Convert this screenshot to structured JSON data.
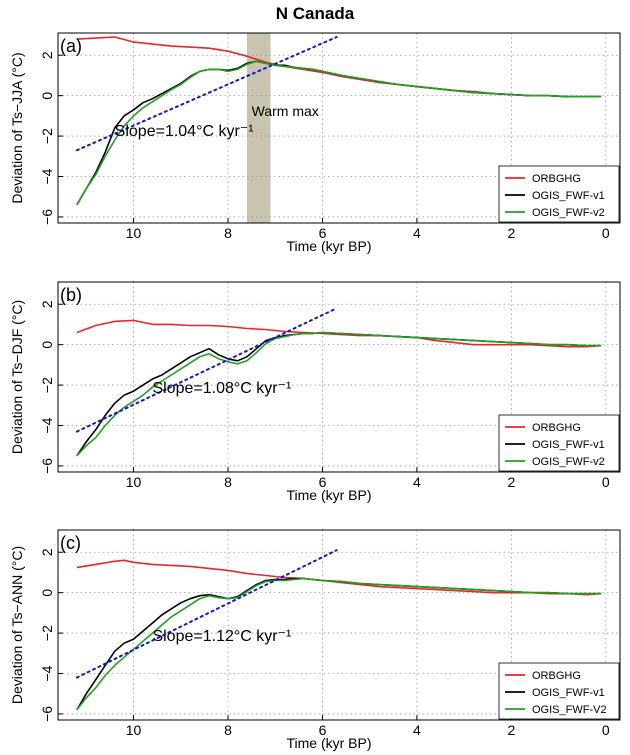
{
  "title": "N Canada",
  "colors": {
    "ORBGHG": "#e8262b",
    "OGIS_FWF-v1": "#000000",
    "OGIS_FWF-v2": "#22a022",
    "slope": "#1515d8",
    "shade": "#9c9470"
  },
  "chart_data": [
    {
      "type": "line",
      "panel_label": "(a)",
      "xlabel": "Time (kyr BP)",
      "ylabel": "Deviation of Ts−JJA (°C)",
      "xlim": [
        11.6,
        -0.3
      ],
      "ylim": [
        -6.3,
        3.1
      ],
      "xticks": [
        10,
        8,
        6,
        4,
        2,
        0
      ],
      "xtick_labels": [
        "10",
        "8",
        "6",
        "4",
        "2",
        "0"
      ],
      "yticks": [
        -6,
        -4,
        -2,
        0,
        2
      ],
      "ytick_labels": [
        "−6",
        "−4",
        "−2",
        "0",
        "2"
      ],
      "grid": true,
      "legend_position": "bottom-right",
      "annotation": "Slope=1.04°C kyr⁻¹",
      "annotation_pos": [
        10.4,
        -2.0
      ],
      "shade_label": "Warm max",
      "shade_label_pos": [
        7.5,
        -1.0
      ],
      "shaded_region": [
        7.6,
        7.1
      ],
      "slope_line": {
        "x": [
          11.2,
          5.7
        ],
        "y": [
          -2.7,
          2.9
        ]
      },
      "series": [
        {
          "name": "ORBGHG",
          "x": [
            11.2,
            10.8,
            10.4,
            10.0,
            9.6,
            9.2,
            8.8,
            8.4,
            8.0,
            7.6,
            7.2,
            6.8,
            6.4,
            6.0,
            5.6,
            5.2,
            4.8,
            4.4,
            4.0,
            3.6,
            3.2,
            2.8,
            2.4,
            2.0,
            1.6,
            1.2,
            0.8,
            0.4,
            0.1
          ],
          "y": [
            2.8,
            2.85,
            2.9,
            2.65,
            2.55,
            2.45,
            2.4,
            2.35,
            2.2,
            1.95,
            1.65,
            1.45,
            1.3,
            1.15,
            0.95,
            0.8,
            0.65,
            0.55,
            0.45,
            0.35,
            0.25,
            0.2,
            0.1,
            0.05,
            0.0,
            0.0,
            -0.05,
            -0.05,
            -0.05
          ]
        },
        {
          "name": "OGIS_FWF-v1",
          "x": [
            11.2,
            11.0,
            10.8,
            10.6,
            10.4,
            10.2,
            10.0,
            9.8,
            9.6,
            9.4,
            9.2,
            9.0,
            8.8,
            8.6,
            8.4,
            8.2,
            8.0,
            7.8,
            7.6,
            7.4,
            7.2,
            7.0,
            6.8,
            6.6,
            6.4,
            6.2,
            6.0,
            5.8,
            5.6,
            5.2,
            4.8,
            4.4,
            4.0,
            3.6,
            3.2,
            2.8,
            2.4,
            2.0,
            1.6,
            1.2,
            0.8,
            0.4,
            0.1
          ],
          "y": [
            -5.4,
            -4.6,
            -3.8,
            -2.8,
            -1.6,
            -1.0,
            -0.7,
            -0.35,
            -0.15,
            0.1,
            0.35,
            0.6,
            0.95,
            1.2,
            1.3,
            1.3,
            1.25,
            1.35,
            1.6,
            1.7,
            1.6,
            1.5,
            1.5,
            1.4,
            1.35,
            1.3,
            1.2,
            1.1,
            1.0,
            0.85,
            0.7,
            0.55,
            0.45,
            0.35,
            0.25,
            0.15,
            0.1,
            0.05,
            0.0,
            0.0,
            -0.05,
            -0.05,
            -0.05
          ]
        },
        {
          "name": "OGIS_FWF-v2",
          "x": [
            11.2,
            11.0,
            10.8,
            10.6,
            10.4,
            10.2,
            10.0,
            9.8,
            9.6,
            9.4,
            9.2,
            9.0,
            8.8,
            8.6,
            8.4,
            8.2,
            8.0,
            7.8,
            7.6,
            7.4,
            7.2,
            7.0,
            6.8,
            6.6,
            6.4,
            6.2,
            6.0,
            5.8,
            5.6,
            5.2,
            4.8,
            4.4,
            4.0,
            3.6,
            3.2,
            2.8,
            2.4,
            2.0,
            1.6,
            1.2,
            0.8,
            0.4,
            0.1
          ],
          "y": [
            -5.4,
            -4.6,
            -3.9,
            -3.0,
            -2.2,
            -1.5,
            -1.0,
            -0.6,
            -0.3,
            0.0,
            0.3,
            0.55,
            0.9,
            1.2,
            1.3,
            1.3,
            1.2,
            1.3,
            1.55,
            1.7,
            1.6,
            1.5,
            1.45,
            1.4,
            1.35,
            1.3,
            1.2,
            1.1,
            1.0,
            0.85,
            0.7,
            0.55,
            0.45,
            0.35,
            0.25,
            0.15,
            0.1,
            0.05,
            0.0,
            0.0,
            -0.05,
            -0.05,
            -0.05
          ]
        }
      ]
    },
    {
      "type": "line",
      "panel_label": "(b)",
      "xlabel": "Time (kyr BP)",
      "ylabel": "Deviation of Ts−DJF (°C)",
      "xlim": [
        11.6,
        -0.3
      ],
      "ylim": [
        -6.3,
        3.1
      ],
      "xticks": [
        10,
        8,
        6,
        4,
        2,
        0
      ],
      "xtick_labels": [
        "10",
        "8",
        "6",
        "4",
        "2",
        "0"
      ],
      "yticks": [
        -6,
        -4,
        -2,
        0,
        2
      ],
      "ytick_labels": [
        "−6",
        "−4",
        "−2",
        "0",
        "2"
      ],
      "grid": true,
      "legend_position": "bottom-right",
      "annotation": "Slope=1.08°C kyr⁻¹",
      "annotation_pos": [
        9.6,
        -2.4
      ],
      "slope_line": {
        "x": [
          11.2,
          5.7
        ],
        "y": [
          -4.3,
          1.8
        ]
      },
      "series": [
        {
          "name": "ORBGHG",
          "x": [
            11.2,
            10.8,
            10.4,
            10.0,
            9.6,
            9.2,
            8.8,
            8.4,
            8.0,
            7.6,
            7.2,
            6.8,
            6.4,
            6.0,
            5.6,
            5.2,
            4.8,
            4.4,
            4.0,
            3.6,
            3.2,
            2.8,
            2.4,
            2.0,
            1.6,
            1.2,
            0.8,
            0.4,
            0.1
          ],
          "y": [
            0.6,
            0.95,
            1.15,
            1.2,
            1.0,
            1.0,
            0.95,
            0.95,
            0.9,
            0.8,
            0.75,
            0.65,
            0.6,
            0.55,
            0.5,
            0.45,
            0.45,
            0.4,
            0.35,
            0.2,
            0.1,
            0.0,
            0.0,
            0.0,
            0.0,
            -0.05,
            -0.1,
            -0.1,
            -0.05
          ]
        },
        {
          "name": "OGIS_FWF-v1",
          "x": [
            11.2,
            11.0,
            10.8,
            10.6,
            10.4,
            10.2,
            10.0,
            9.8,
            9.6,
            9.4,
            9.2,
            9.0,
            8.8,
            8.6,
            8.4,
            8.2,
            8.0,
            7.8,
            7.6,
            7.4,
            7.2,
            7.0,
            6.8,
            6.6,
            6.4,
            6.2,
            6.0,
            5.6,
            5.2,
            4.8,
            4.4,
            4.0,
            3.6,
            3.2,
            2.8,
            2.4,
            2.0,
            1.6,
            1.2,
            0.8,
            0.4,
            0.1
          ],
          "y": [
            -5.5,
            -4.8,
            -4.2,
            -3.5,
            -2.9,
            -2.5,
            -2.3,
            -2.0,
            -1.7,
            -1.5,
            -1.2,
            -0.9,
            -0.6,
            -0.4,
            -0.2,
            -0.5,
            -0.7,
            -0.8,
            -0.6,
            -0.2,
            0.2,
            0.35,
            0.45,
            0.5,
            0.55,
            0.55,
            0.6,
            0.55,
            0.5,
            0.45,
            0.4,
            0.35,
            0.3,
            0.25,
            0.2,
            0.15,
            0.1,
            0.05,
            0.0,
            0.0,
            -0.05,
            -0.05
          ]
        },
        {
          "name": "OGIS_FWF-v2",
          "x": [
            11.2,
            11.0,
            10.8,
            10.6,
            10.4,
            10.2,
            10.0,
            9.8,
            9.6,
            9.4,
            9.2,
            9.0,
            8.8,
            8.6,
            8.4,
            8.2,
            8.0,
            7.8,
            7.6,
            7.4,
            7.2,
            7.0,
            6.8,
            6.6,
            6.4,
            6.2,
            6.0,
            5.6,
            5.2,
            4.8,
            4.4,
            4.0,
            3.6,
            3.2,
            2.8,
            2.4,
            2.0,
            1.6,
            1.2,
            0.8,
            0.4,
            0.1
          ],
          "y": [
            -5.5,
            -5.0,
            -4.6,
            -4.0,
            -3.5,
            -3.1,
            -2.8,
            -2.5,
            -2.1,
            -1.8,
            -1.5,
            -1.2,
            -0.9,
            -0.6,
            -0.45,
            -0.7,
            -0.85,
            -0.95,
            -0.8,
            -0.4,
            0.05,
            0.3,
            0.4,
            0.5,
            0.55,
            0.55,
            0.6,
            0.55,
            0.5,
            0.45,
            0.4,
            0.35,
            0.3,
            0.25,
            0.2,
            0.15,
            0.1,
            0.05,
            0.0,
            0.0,
            -0.05,
            -0.05
          ]
        }
      ]
    },
    {
      "type": "line",
      "panel_label": "(c)",
      "xlabel": "Time (kyr BP)",
      "ylabel": "Deviation of Ts−ANN (°C)",
      "xlim": [
        11.6,
        -0.3
      ],
      "ylim": [
        -6.3,
        3.1
      ],
      "xticks": [
        10,
        8,
        6,
        4,
        2,
        0
      ],
      "xtick_labels": [
        "10",
        "8",
        "6",
        "4",
        "2",
        "0"
      ],
      "yticks": [
        -6,
        -4,
        -2,
        0,
        2
      ],
      "ytick_labels": [
        "−6",
        "−4",
        "−2",
        "0",
        "2"
      ],
      "grid": true,
      "legend_position": "bottom-right",
      "annotation": "Slope=1.12°C kyr⁻¹",
      "annotation_pos": [
        9.6,
        -2.4
      ],
      "slope_line": {
        "x": [
          11.2,
          5.7
        ],
        "y": [
          -4.2,
          2.1
        ]
      },
      "series": [
        {
          "name": "ORBGHG",
          "x": [
            11.2,
            10.8,
            10.4,
            10.2,
            10.0,
            9.6,
            9.2,
            8.8,
            8.4,
            8.0,
            7.6,
            7.2,
            6.8,
            6.4,
            6.0,
            5.6,
            5.2,
            4.8,
            4.4,
            4.0,
            3.6,
            3.2,
            2.8,
            2.4,
            2.0,
            1.6,
            1.2,
            0.8,
            0.4,
            0.1
          ],
          "y": [
            1.25,
            1.4,
            1.55,
            1.6,
            1.5,
            1.4,
            1.35,
            1.3,
            1.2,
            1.1,
            0.95,
            0.85,
            0.75,
            0.7,
            0.6,
            0.5,
            0.4,
            0.3,
            0.25,
            0.2,
            0.15,
            0.1,
            0.05,
            0.0,
            0.0,
            0.0,
            -0.05,
            -0.05,
            -0.1,
            -0.05
          ]
        },
        {
          "name": "OGIS_FWF-v1",
          "x": [
            11.2,
            11.0,
            10.8,
            10.6,
            10.4,
            10.2,
            10.0,
            9.8,
            9.6,
            9.4,
            9.2,
            9.0,
            8.8,
            8.6,
            8.4,
            8.2,
            8.0,
            7.8,
            7.6,
            7.4,
            7.2,
            7.0,
            6.8,
            6.6,
            6.4,
            6.2,
            6.0,
            5.6,
            5.2,
            4.8,
            4.4,
            4.0,
            3.6,
            3.2,
            2.8,
            2.4,
            2.0,
            1.6,
            1.2,
            0.8,
            0.4,
            0.1
          ],
          "y": [
            -5.8,
            -5.0,
            -4.3,
            -3.6,
            -2.9,
            -2.5,
            -2.3,
            -1.9,
            -1.5,
            -1.1,
            -0.8,
            -0.5,
            -0.3,
            -0.15,
            -0.1,
            -0.2,
            -0.3,
            -0.2,
            0.1,
            0.4,
            0.6,
            0.65,
            0.65,
            0.7,
            0.7,
            0.65,
            0.6,
            0.55,
            0.45,
            0.4,
            0.35,
            0.3,
            0.25,
            0.2,
            0.15,
            0.1,
            0.05,
            0.0,
            0.0,
            -0.05,
            -0.05,
            -0.05
          ]
        },
        {
          "name": "OGIS_FWF-V2",
          "x": [
            11.2,
            11.0,
            10.8,
            10.6,
            10.4,
            10.2,
            10.0,
            9.8,
            9.6,
            9.4,
            9.2,
            9.0,
            8.8,
            8.6,
            8.4,
            8.2,
            8.0,
            7.8,
            7.6,
            7.4,
            7.2,
            7.0,
            6.8,
            6.6,
            6.4,
            6.2,
            6.0,
            5.6,
            5.2,
            4.8,
            4.4,
            4.0,
            3.6,
            3.2,
            2.8,
            2.4,
            2.0,
            1.6,
            1.2,
            0.8,
            0.4,
            0.1
          ],
          "y": [
            -5.8,
            -5.2,
            -4.7,
            -4.1,
            -3.6,
            -3.2,
            -2.8,
            -2.4,
            -2.0,
            -1.6,
            -1.2,
            -0.9,
            -0.6,
            -0.3,
            -0.15,
            -0.25,
            -0.3,
            -0.25,
            0.05,
            0.35,
            0.55,
            0.6,
            0.6,
            0.65,
            0.7,
            0.65,
            0.6,
            0.55,
            0.45,
            0.4,
            0.35,
            0.3,
            0.25,
            0.2,
            0.15,
            0.1,
            0.05,
            0.0,
            0.0,
            -0.05,
            -0.05,
            -0.05
          ]
        }
      ]
    }
  ]
}
